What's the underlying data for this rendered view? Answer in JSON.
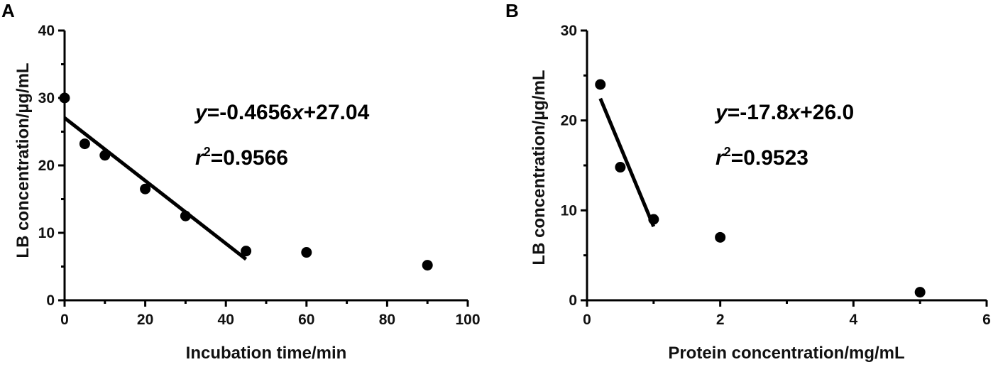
{
  "chart_data": [
    {
      "type": "scatter",
      "panel_label": "A",
      "xlabel": "Incubation time/min",
      "ylabel": "LB concentration/µg/mL",
      "xlim": [
        0,
        100
      ],
      "ylim": [
        0,
        40
      ],
      "xticks": [
        0,
        20,
        40,
        60,
        80,
        100
      ],
      "yticks": [
        0,
        10,
        20,
        30,
        40
      ],
      "series": [
        {
          "x": [
            0,
            5,
            10,
            20,
            30,
            45,
            60,
            90
          ],
          "y": [
            30.0,
            23.2,
            21.5,
            16.5,
            12.5,
            7.3,
            7.1,
            5.2
          ]
        }
      ],
      "fit": {
        "slope": -0.4656,
        "intercept": 27.04,
        "x_range": [
          0,
          45
        ]
      },
      "equation": {
        "y_var": "y",
        "eq_text": "=-0.4656",
        "x_var": "x",
        "const_text": "+27.04"
      },
      "r2": {
        "r": "r",
        "sup": "2",
        "value_text": "=0.9566"
      }
    },
    {
      "type": "scatter",
      "panel_label": "B",
      "xlabel": "Protein concentration/mg/mL",
      "ylabel": "LB concentration/µg/mL",
      "xlim": [
        0,
        6
      ],
      "ylim": [
        0,
        30
      ],
      "xticks": [
        0,
        2,
        4,
        6
      ],
      "yticks": [
        0,
        10,
        20,
        30
      ],
      "series": [
        {
          "x": [
            0.2,
            0.5,
            1.0,
            2.0,
            5.0
          ],
          "y": [
            24.0,
            14.8,
            9.0,
            7.0,
            0.9
          ]
        }
      ],
      "fit": {
        "slope": -17.8,
        "intercept": 26.0,
        "x_range": [
          0.2,
          1.0
        ]
      },
      "equation": {
        "y_var": "y",
        "eq_text": "=-17.8",
        "x_var": "x",
        "const_text": "+26.0"
      },
      "r2": {
        "r": "r",
        "sup": "2",
        "value_text": "=0.9523"
      }
    }
  ]
}
